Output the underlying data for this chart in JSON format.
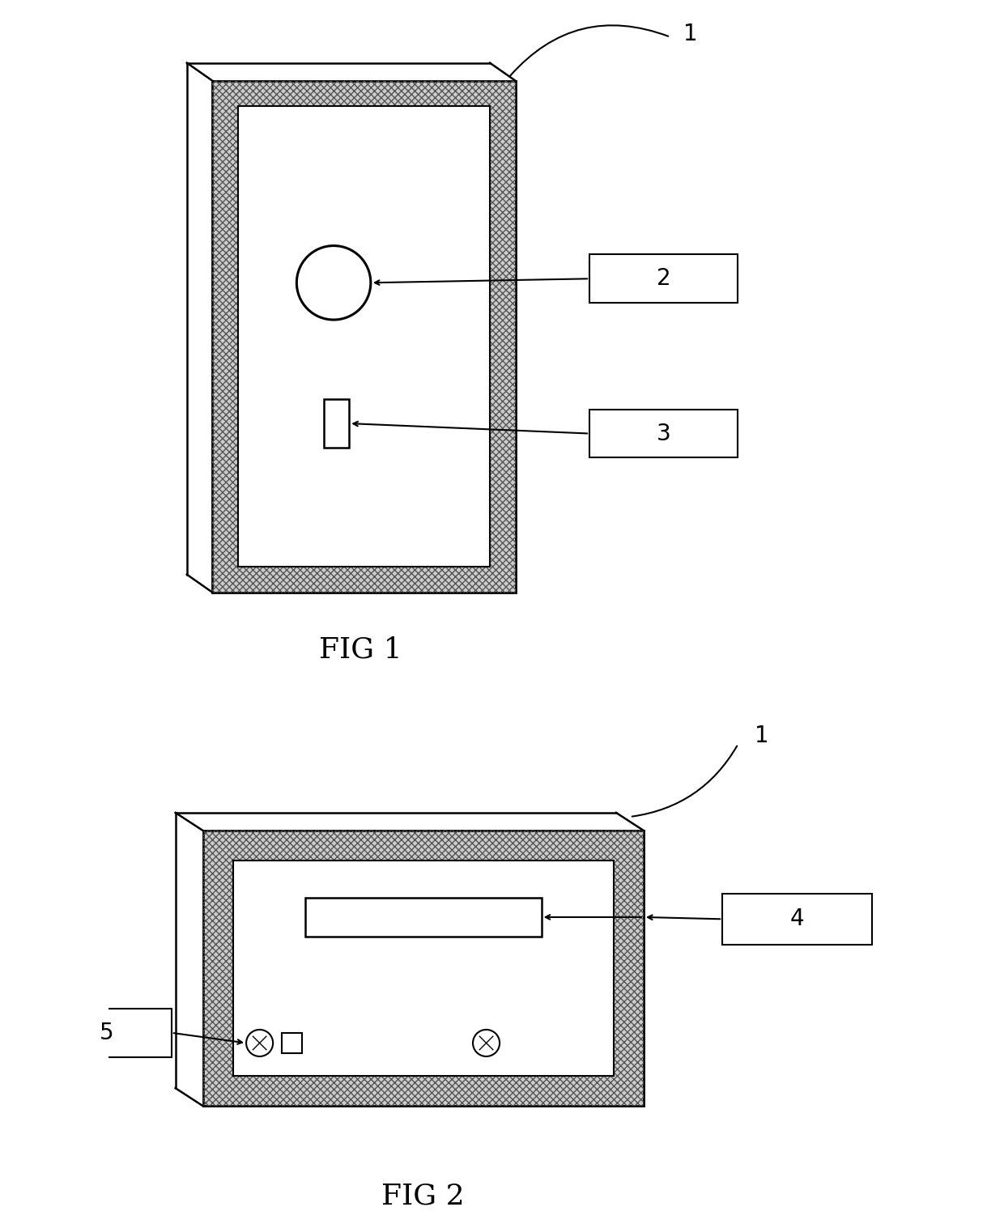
{
  "bg_color": "#ffffff",
  "line_color": "#000000",
  "hatch_color": "#888888",
  "label_fontsize": 20,
  "caption_fontsize": 26,
  "fig1_caption": "FIG 1",
  "fig2_caption": "FIG 2",
  "label1": "1",
  "label2": "2",
  "label3": "3",
  "label4": "4",
  "label5": "5"
}
